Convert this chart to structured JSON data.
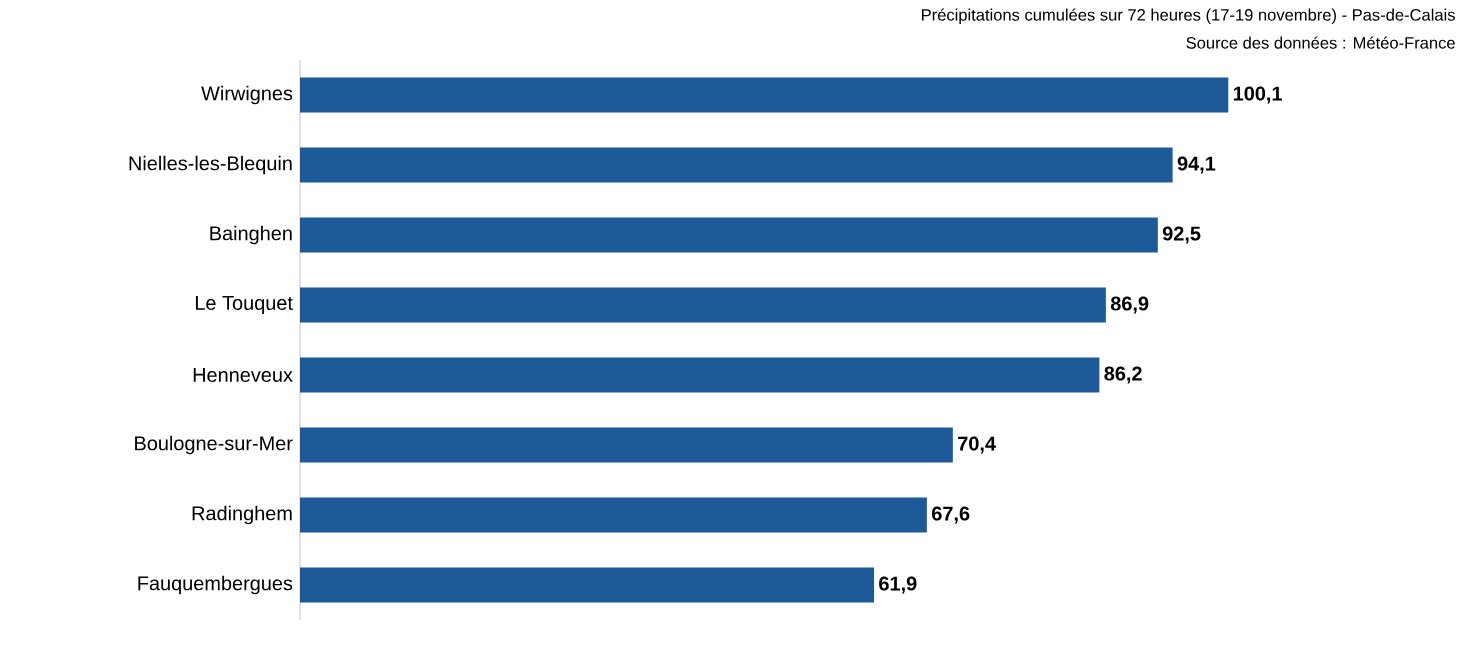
{
  "chart_data": {
    "type": "bar",
    "orientation": "horizontal",
    "title": "Précipitations cumulées sur 72 heures (17-19 novembre) - Pas-de-Calais",
    "annotations": [
      "Source des données : Météo-France"
    ],
    "categories": [
      "Wirwignes",
      "Nielles-les-Blequin",
      "Bainghen",
      "Le Touquet",
      "Henneveux",
      "Boulogne-sur-Mer",
      "Radinghem",
      "Fauquembergues"
    ],
    "values": [
      100.1,
      94.1,
      92.5,
      86.9,
      86.2,
      70.4,
      67.6,
      61.9
    ],
    "value_labels": [
      "100,1",
      "94,1",
      "92,5",
      "86,9",
      "86,2",
      "70,4",
      "67,6",
      "61,9"
    ],
    "color": "#1f5a98"
  }
}
